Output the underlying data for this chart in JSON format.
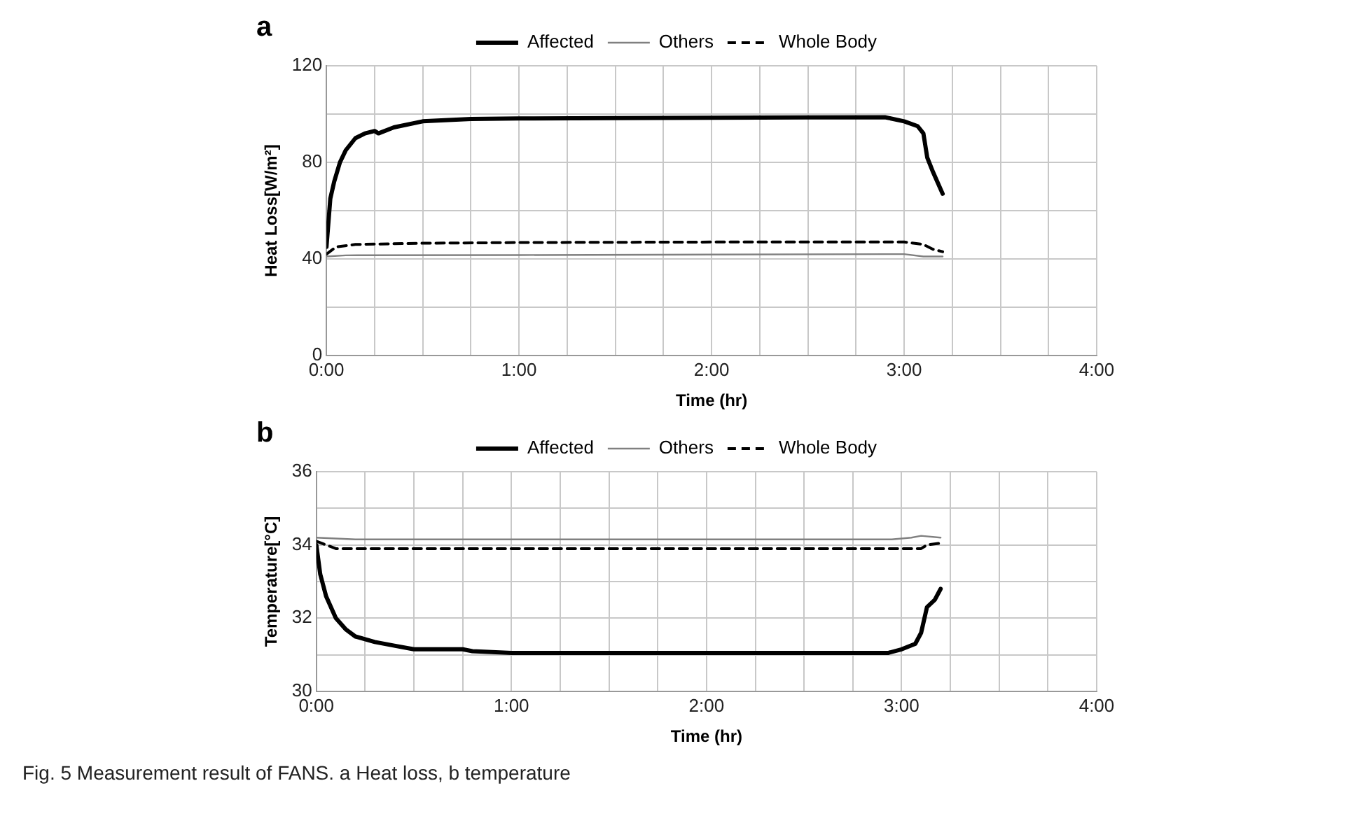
{
  "chart_data": [
    {
      "type": "line",
      "title": "a",
      "xlabel": "Time (hr)",
      "ylabel": "Heat Loss[W/m²]",
      "legend": "top",
      "grid": true,
      "marker": "none",
      "xlim": [
        0,
        4
      ],
      "xticks": [
        {
          "value": 0,
          "label": "0:00"
        },
        {
          "value": 0.25,
          "label": null
        },
        {
          "value": 0.5,
          "label": null
        },
        {
          "value": 0.75,
          "label": null
        },
        {
          "value": 1,
          "label": "1:00"
        },
        {
          "value": 1.25,
          "label": null
        },
        {
          "value": 1.5,
          "label": null
        },
        {
          "value": 1.75,
          "label": null
        },
        {
          "value": 2,
          "label": "2:00"
        },
        {
          "value": 2.25,
          "label": null
        },
        {
          "value": 2.5,
          "label": null
        },
        {
          "value": 2.75,
          "label": null
        },
        {
          "value": 3,
          "label": "3:00"
        },
        {
          "value": 3.25,
          "label": null
        },
        {
          "value": 3.5,
          "label": null
        },
        {
          "value": 3.75,
          "label": null
        },
        {
          "value": 4,
          "label": "4:00"
        }
      ],
      "ylim": [
        0,
        120
      ],
      "yticks": [
        0,
        {
          "value": 20,
          "label": null
        },
        40,
        {
          "value": 60,
          "label": null
        },
        80,
        {
          "value": 100,
          "label": null
        },
        120
      ],
      "series": [
        {
          "name": "Affected",
          "color": "#000000",
          "line_style": "solid",
          "x": [
            0,
            0.01,
            0.02,
            0.04,
            0.07,
            0.1,
            0.15,
            0.2,
            0.25,
            0.27,
            0.35,
            0.5,
            0.75,
            1,
            1.5,
            2,
            2.5,
            2.9,
            3.0,
            3.07,
            3.1,
            3.12,
            3.15,
            3.2
          ],
          "values": [
            45,
            55,
            65,
            72,
            80,
            85,
            90,
            92,
            93,
            92,
            94.5,
            97,
            98,
            98.2,
            98.3,
            98.5,
            98.6,
            98.7,
            97,
            95,
            92,
            82,
            76,
            67
          ]
        },
        {
          "name": "Others",
          "color": "#808080",
          "line_style": "solid",
          "x": [
            0,
            0.1,
            1,
            2,
            3,
            3.1,
            3.2
          ],
          "values": [
            41,
            41.5,
            41.6,
            41.8,
            42,
            41,
            41
          ]
        },
        {
          "name": "Whole Body",
          "color": "#000000",
          "line_style": "dashed",
          "x": [
            0,
            0.05,
            0.15,
            0.5,
            1,
            2,
            3,
            3.1,
            3.15,
            3.2
          ],
          "values": [
            42,
            45,
            46,
            46.5,
            46.8,
            47,
            47,
            46,
            44,
            43
          ]
        }
      ]
    },
    {
      "type": "line",
      "title": "b",
      "xlabel": "Time (hr)",
      "ylabel": "Temperature[°C]",
      "legend": "top",
      "grid": true,
      "marker": "none",
      "xlim": [
        0,
        4
      ],
      "xticks": [
        {
          "value": 0,
          "label": "0:00"
        },
        {
          "value": 0.25,
          "label": null
        },
        {
          "value": 0.5,
          "label": null
        },
        {
          "value": 0.75,
          "label": null
        },
        {
          "value": 1,
          "label": "1:00"
        },
        {
          "value": 1.25,
          "label": null
        },
        {
          "value": 1.5,
          "label": null
        },
        {
          "value": 1.75,
          "label": null
        },
        {
          "value": 2,
          "label": "2:00"
        },
        {
          "value": 2.25,
          "label": null
        },
        {
          "value": 2.5,
          "label": null
        },
        {
          "value": 2.75,
          "label": null
        },
        {
          "value": 3,
          "label": "3:00"
        },
        {
          "value": 3.25,
          "label": null
        },
        {
          "value": 3.5,
          "label": null
        },
        {
          "value": 3.75,
          "label": null
        },
        {
          "value": 4,
          "label": "4:00"
        }
      ],
      "ylim": [
        30,
        36
      ],
      "yticks": [
        30,
        {
          "value": 31,
          "label": null
        },
        32,
        {
          "value": 33,
          "label": null
        },
        34,
        {
          "value": 35,
          "label": null
        },
        36
      ],
      "annotations": [
        "Fig. 5  Measurement result of FANS. a Heat loss, b temperature"
      ],
      "series": [
        {
          "name": "Affected",
          "color": "#000000",
          "line_style": "solid",
          "x": [
            0,
            0.02,
            0.05,
            0.1,
            0.15,
            0.2,
            0.3,
            0.4,
            0.5,
            0.75,
            0.8,
            1,
            2,
            2.93,
            3.0,
            3.07,
            3.1,
            3.13,
            3.17,
            3.2
          ],
          "values": [
            34,
            33.2,
            32.6,
            32,
            31.7,
            31.5,
            31.35,
            31.25,
            31.15,
            31.15,
            31.1,
            31.05,
            31.05,
            31.05,
            31.15,
            31.3,
            31.6,
            32.3,
            32.5,
            32.8
          ]
        },
        {
          "name": "Others",
          "color": "#808080",
          "line_style": "solid",
          "x": [
            0,
            0.2,
            1,
            2,
            2.95,
            3.05,
            3.1,
            3.2
          ],
          "values": [
            34.2,
            34.15,
            34.15,
            34.15,
            34.15,
            34.2,
            34.25,
            34.2
          ]
        },
        {
          "name": "Whole Body",
          "color": "#000000",
          "line_style": "dashed",
          "x": [
            0,
            0.05,
            0.1,
            1,
            2,
            3.1,
            3.13,
            3.2
          ],
          "values": [
            34.1,
            34.0,
            33.9,
            33.9,
            33.9,
            33.9,
            34.0,
            34.05
          ]
        }
      ]
    }
  ]
}
